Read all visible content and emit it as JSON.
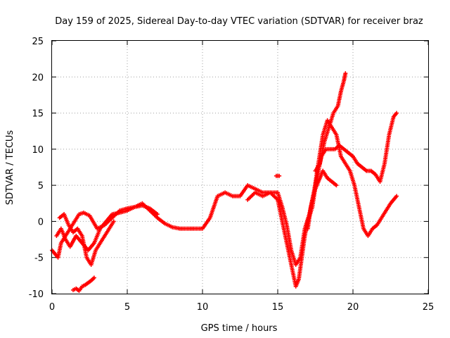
{
  "chart_data": {
    "type": "scatter",
    "title": "Day 159 of 2025, Sidereal Day-to-day VTEC variation (SDTVAR) for receiver braz",
    "xlabel": "GPS time / hours",
    "ylabel": "SDTVAR / TECUs",
    "xlim": [
      0,
      25
    ],
    "ylim": [
      -10,
      25
    ],
    "xticks": [
      0,
      5,
      10,
      15,
      20,
      25
    ],
    "yticks": [
      -10,
      -5,
      0,
      5,
      10,
      15,
      20,
      25
    ],
    "grid": true,
    "marker": "+",
    "color": "#ff0000",
    "series": [
      {
        "x": [
          0.0,
          0.2,
          0.4,
          0.6,
          0.9,
          1.2,
          1.5,
          1.8,
          2.1,
          2.5,
          3.0,
          3.5,
          4.0,
          4.5,
          5.0,
          5.5,
          6.0,
          6.5,
          7.0,
          7.5,
          8.0,
          8.5,
          9.0,
          9.5,
          10.0,
          10.5,
          11.0,
          11.5,
          12.0,
          12.5,
          13.0,
          13.5,
          14.0,
          14.5,
          15.0,
          15.3,
          15.6,
          15.9,
          16.2,
          16.5,
          16.8,
          17.1,
          17.4,
          17.7,
          18.0,
          18.3,
          18.6,
          18.9,
          19.2,
          19.5,
          19.8,
          20.1,
          20.4,
          20.7,
          21.0,
          21.3,
          21.6,
          21.9,
          22.2,
          22.5,
          22.9
        ],
        "values": [
          -4,
          -4.5,
          -5,
          -3,
          -2,
          -1,
          0,
          1,
          1.2,
          0.8,
          -1,
          -0.5,
          0.5,
          1.5,
          1.8,
          2,
          2.5,
          1.5,
          0.5,
          -0.3,
          -0.8,
          -1,
          -1,
          -1,
          -1,
          0.5,
          3.5,
          4,
          3.5,
          3.5,
          5,
          4.5,
          4,
          4,
          4,
          2,
          -0.5,
          -4,
          -6,
          -5,
          -1,
          1,
          4,
          8,
          12,
          14,
          13,
          12,
          9,
          8,
          7,
          5,
          2,
          -1,
          -2,
          -1,
          -0.5,
          0.5,
          1.5,
          2.5,
          3.5
        ]
      },
      {
        "x": [
          0.3,
          0.6,
          0.9,
          1.2,
          1.6,
          2.0,
          2.4,
          2.8,
          3.2,
          3.6,
          4.0,
          4.5,
          5.0,
          5.5,
          6.0,
          6.5,
          7.0
        ],
        "values": [
          -2,
          -1,
          -2.5,
          -3.5,
          -2,
          -3,
          -4,
          -3,
          -1,
          0,
          1,
          1.2,
          1.5,
          2,
          2.2,
          1.8,
          1
        ]
      },
      {
        "x": [
          0.5,
          0.8,
          1.1,
          1.4,
          1.7,
          2.0,
          2.3,
          2.6,
          2.9,
          3.2,
          3.5,
          3.8,
          4.1
        ],
        "values": [
          0.5,
          1,
          -0.5,
          -1.5,
          -1,
          -2,
          -5,
          -6,
          -4,
          -3,
          -2,
          -1,
          0
        ]
      },
      {
        "x": [
          1.4,
          1.6,
          1.8,
          2.0,
          2.2,
          2.4,
          2.6,
          2.8
        ],
        "values": [
          -9.5,
          -9.3,
          -9.6,
          -9,
          -8.8,
          -8.5,
          -8.2,
          -7.8
        ]
      },
      {
        "x": [
          13.0,
          13.5,
          14.0,
          14.5,
          15.0,
          15.3,
          15.6,
          15.9,
          16.2,
          16.4,
          16.6,
          16.8,
          17.0,
          17.3,
          17.6,
          17.9,
          18.2,
          18.5,
          18.8,
          19.1,
          19.4,
          19.7,
          20.0,
          20.3,
          20.6,
          20.9,
          21.2,
          21.5,
          21.8,
          22.1,
          22.4,
          22.7,
          22.9
        ],
        "values": [
          3,
          4,
          3.5,
          4,
          3,
          0,
          -3,
          -6,
          -9,
          -8,
          -5,
          -2,
          0,
          2,
          6,
          9,
          10,
          10,
          10,
          10.5,
          10,
          9.5,
          9,
          8,
          7.5,
          7,
          7,
          6.5,
          5.5,
          8,
          12,
          14.5,
          15
        ]
      },
      {
        "x": [
          17.5,
          17.8,
          18.1,
          18.4,
          18.7,
          19.0,
          19.2,
          19.4,
          19.5
        ],
        "values": [
          7,
          8,
          11,
          13,
          15,
          16,
          18,
          19.5,
          20.5
        ]
      },
      {
        "x": [
          17.0,
          17.2,
          17.4,
          17.6,
          17.8,
          18.0,
          18.3,
          18.6,
          18.9
        ],
        "values": [
          -1,
          2,
          4,
          5,
          6,
          7,
          6,
          5.5,
          5
        ]
      },
      {
        "x": [
          14.9,
          15.1
        ],
        "values": [
          6.3,
          6.3
        ]
      }
    ]
  }
}
